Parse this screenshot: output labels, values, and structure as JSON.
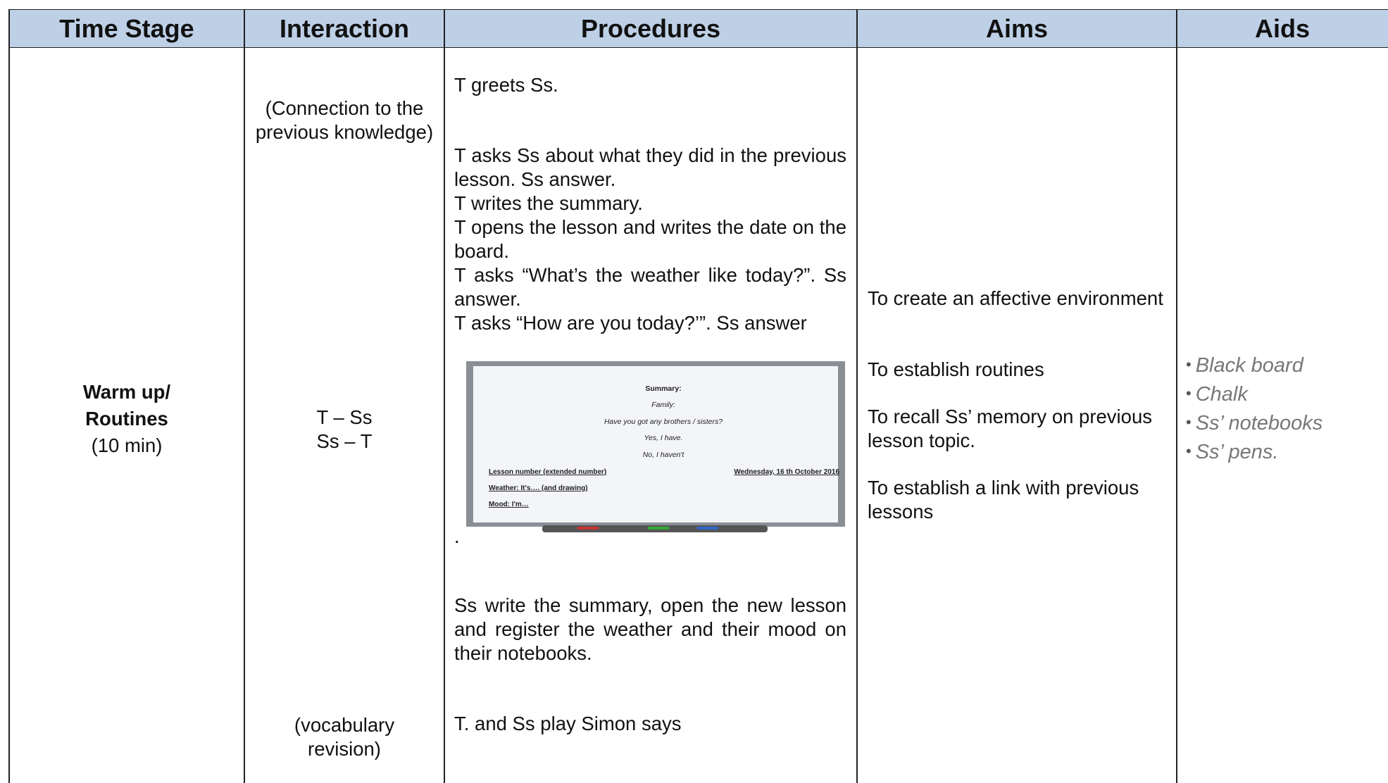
{
  "table": {
    "headers": [
      "Time Stage",
      "Interaction",
      "Procedures",
      "Aims",
      "Aids"
    ],
    "time_stage": {
      "stage": [
        "Warm up/",
        "Routines"
      ],
      "duration": "(10 min)"
    },
    "interaction": {
      "top": "(Connection to the previous knowledge)",
      "middle": [
        "T – Ss",
        "Ss – T"
      ],
      "bottom": "(vocabulary revision)"
    },
    "procedures": {
      "greeting": "T greets Ss.",
      "steps": [
        "T asks Ss about what they did in the previous lesson. Ss answer.",
        "T writes the summary.",
        "T opens the lesson and writes the date on the board.",
        "T asks “What’s the weather like today?”. Ss answer.",
        "T asks “How are you today?’”. Ss answer"
      ],
      "board": {
        "center_lines": [
          "Summary:",
          "Family:",
          "Have you got any brothers / sisters?",
          "Yes, I have.",
          "No, I haven't"
        ],
        "lesson_number": "Lesson number (extended number)",
        "date": "Wednesday, 16 th October 2016",
        "weather": "Weather: It's…. (and drawing)",
        "mood": "Mood: I'm…"
      },
      "board_caption": ".",
      "after_board": "Ss write the summary, open the new lesson and register the weather and their mood on their notebooks.",
      "game": "T. and Ss play Simon says"
    },
    "aims": [
      "To create an affective environment",
      "To establish routines",
      "To recall Ss’ memory on previous lesson topic.",
      "To establish a link with previous lessons"
    ],
    "aids": [
      "Black board",
      "Chalk",
      "Ss’ notebooks",
      "Ss’ pens."
    ]
  }
}
